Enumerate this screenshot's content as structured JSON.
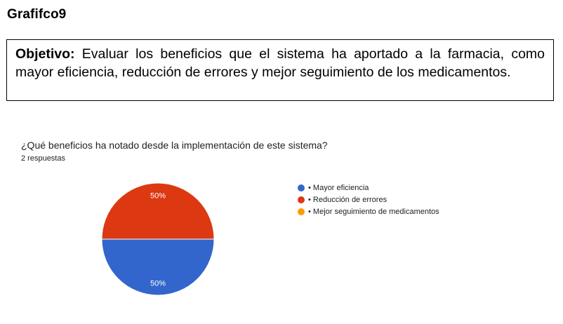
{
  "heading": "Grafifco9",
  "objective": {
    "label": "Objetivo:",
    "text": " Evaluar los beneficios que el sistema ha aportado a la farmacia, como mayor eficiencia, reducción de errores y mejor seguimiento de los medicamentos."
  },
  "form": {
    "question": "¿Qué beneficios ha notado desde la implementación de este sistema?",
    "responses": "2 respuestas"
  },
  "chart_data": {
    "type": "pie",
    "categories": [
      "• Mayor eficiencia",
      "• Reducción de errores",
      "• Mejor seguimiento de medicamentos"
    ],
    "values": [
      50,
      50,
      0
    ],
    "data_labels": [
      "50%",
      "50%",
      ""
    ],
    "colors": [
      "#3366cc",
      "#dc3912",
      "#ff9900"
    ],
    "legend_position": "right",
    "title": ""
  }
}
